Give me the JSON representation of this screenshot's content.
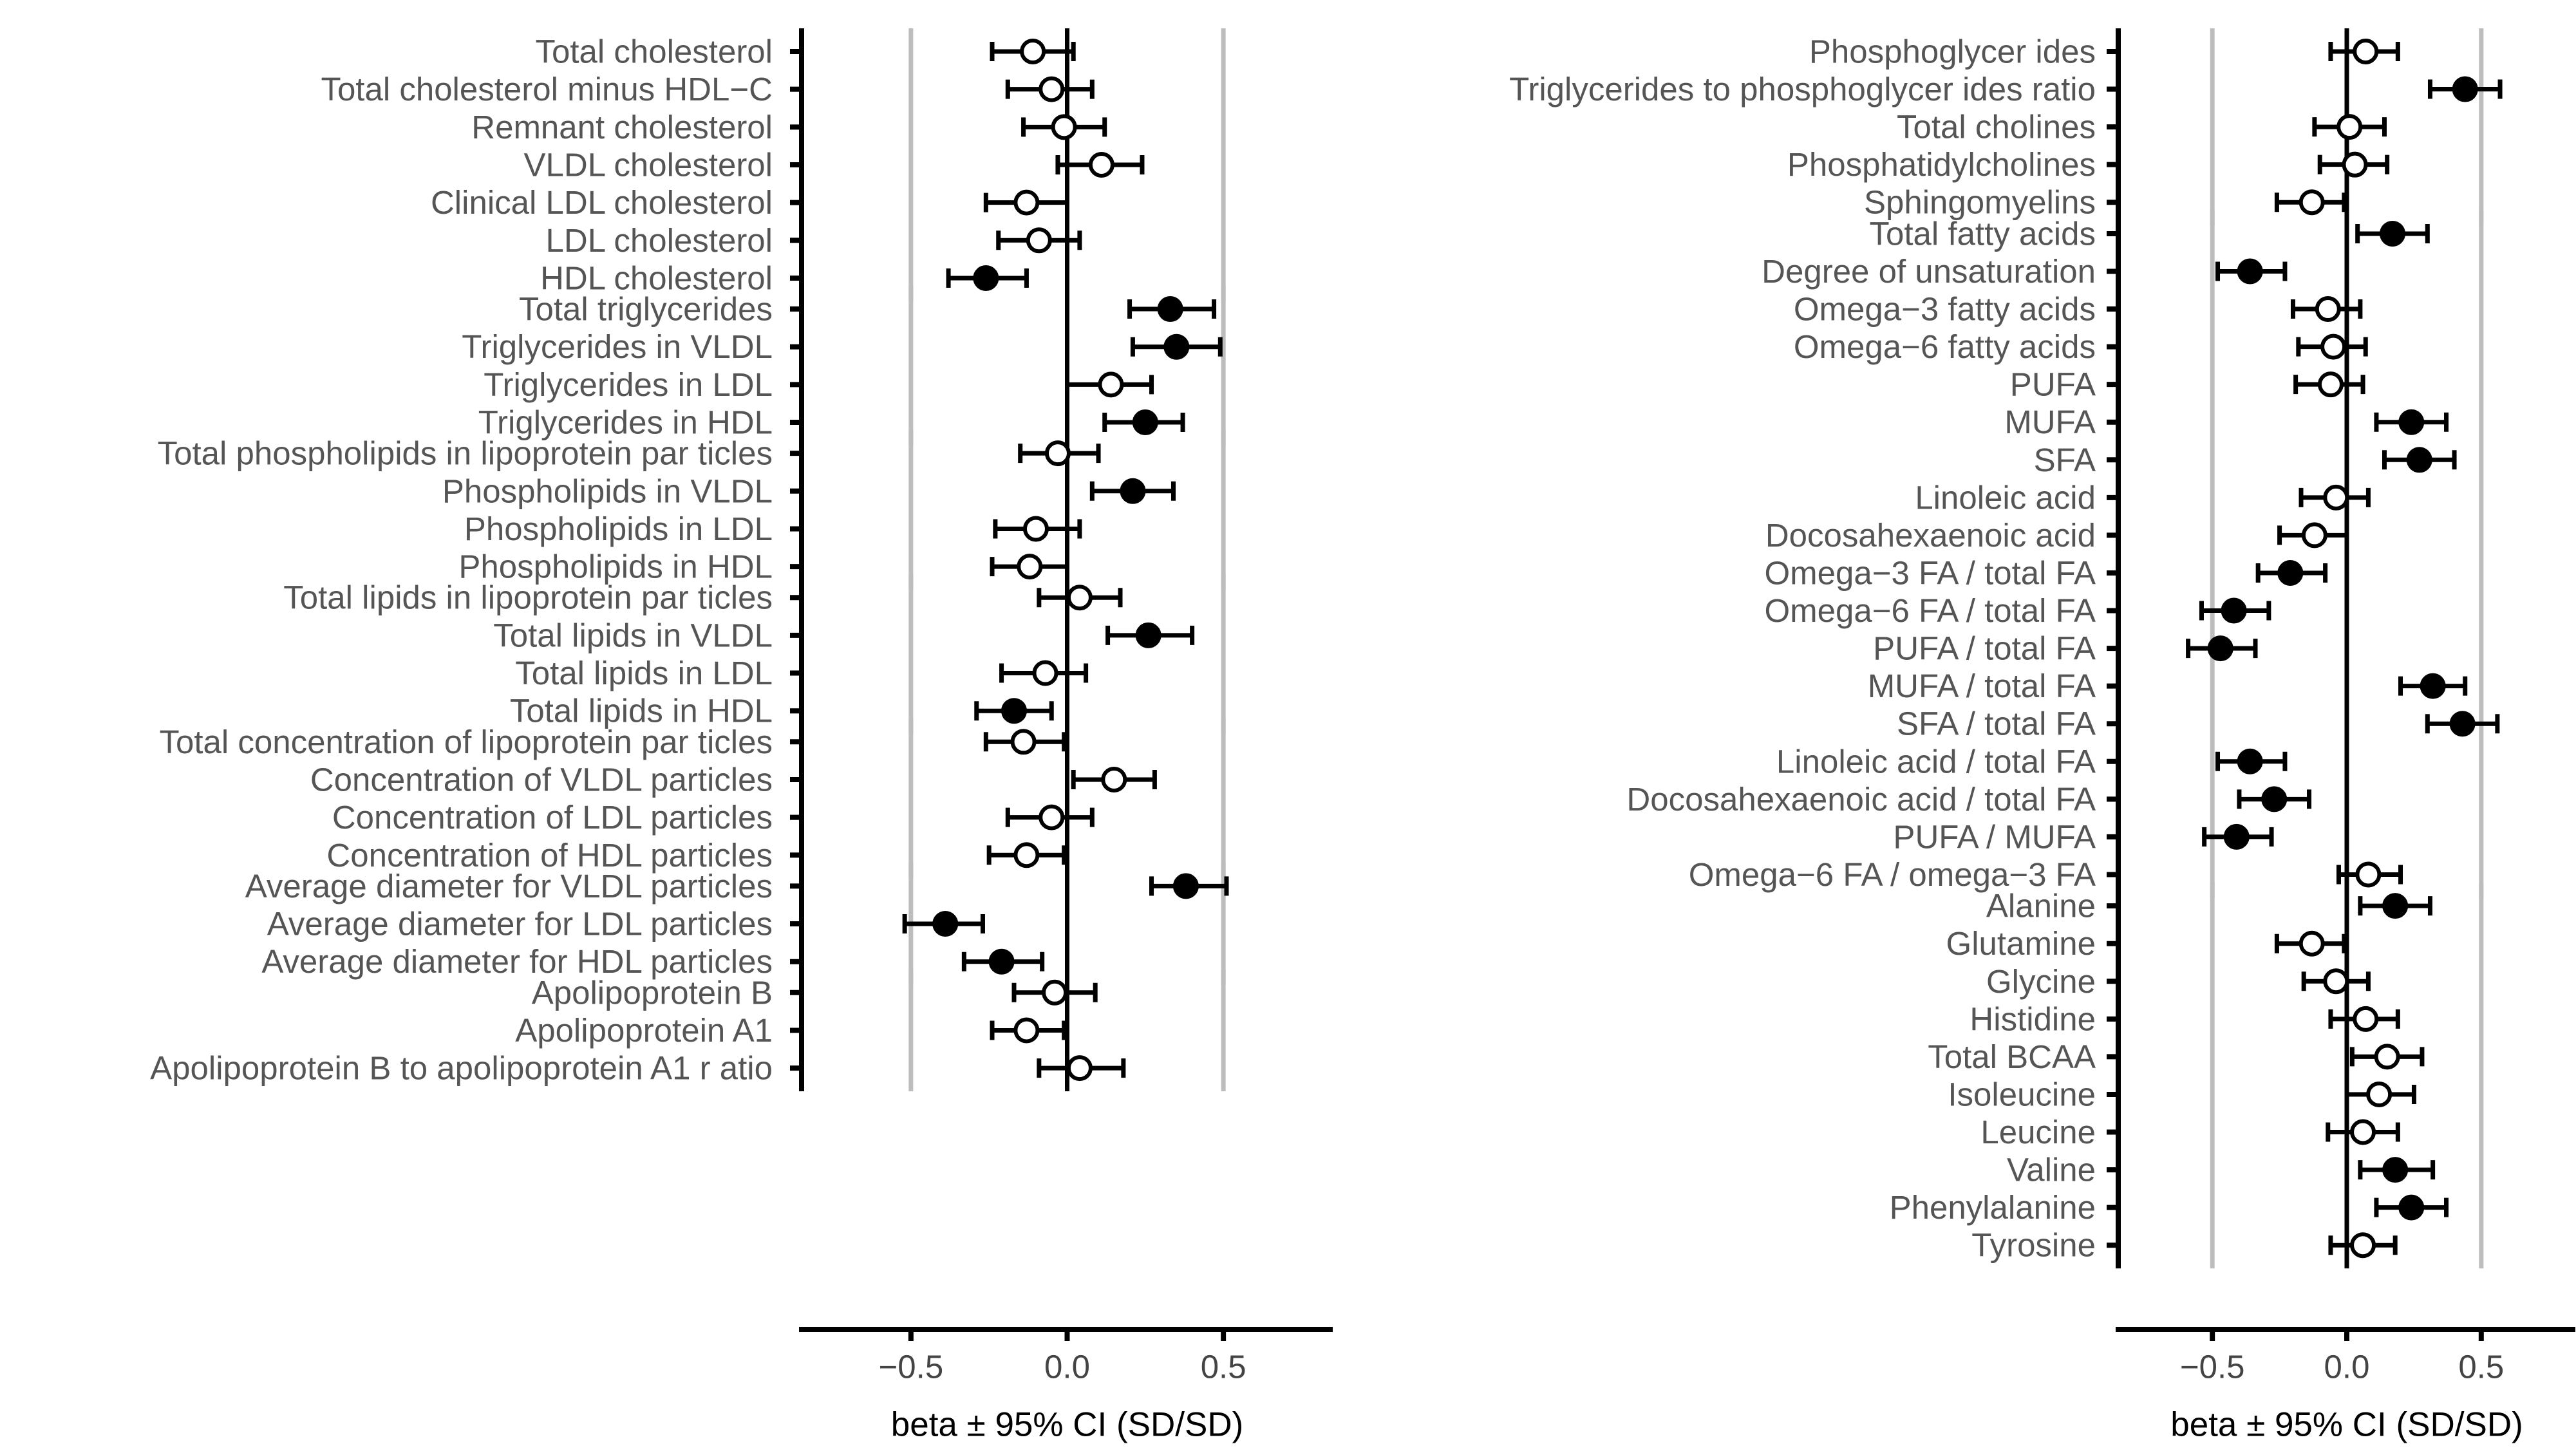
{
  "chart_data": [
    {
      "type": "forest",
      "xlabel": "beta ± 95% CI (SD/SD)",
      "xlim": [
        -0.85,
        0.85
      ],
      "xticks": [
        -0.5,
        0.0,
        0.5
      ],
      "xtick_labels": [
        "−0.5",
        "0.0",
        "0.5"
      ],
      "gridlines": [
        -0.5,
        0.5
      ],
      "groups": [
        {
          "rows": [
            {
              "label": "Total cholesterol",
              "beta": -0.11,
              "lo": -0.24,
              "hi": 0.02,
              "sig": false
            },
            {
              "label": "Total cholesterol minus HDL−C",
              "beta": -0.05,
              "lo": -0.19,
              "hi": 0.08,
              "sig": false
            },
            {
              "label": "Remnant cholesterol",
              "beta": -0.01,
              "lo": -0.14,
              "hi": 0.12,
              "sig": false
            },
            {
              "label": "VLDL cholesterol",
              "beta": 0.11,
              "lo": -0.03,
              "hi": 0.24,
              "sig": false
            },
            {
              "label": "Clinical LDL cholesterol",
              "beta": -0.13,
              "lo": -0.26,
              "hi": 0.0,
              "sig": false
            },
            {
              "label": "LDL cholesterol",
              "beta": -0.09,
              "lo": -0.22,
              "hi": 0.04,
              "sig": false
            },
            {
              "label": "HDL cholesterol",
              "beta": -0.26,
              "lo": -0.38,
              "hi": -0.13,
              "sig": true
            }
          ]
        },
        {
          "rows": [
            {
              "label": "Total triglycerides",
              "beta": 0.33,
              "lo": 0.2,
              "hi": 0.47,
              "sig": true
            },
            {
              "label": "Triglycerides in VLDL",
              "beta": 0.35,
              "lo": 0.21,
              "hi": 0.49,
              "sig": true
            },
            {
              "label": "Triglycerides in LDL",
              "beta": 0.14,
              "lo": 0.0,
              "hi": 0.27,
              "sig": false
            },
            {
              "label": "Triglycerides in HDL",
              "beta": 0.25,
              "lo": 0.12,
              "hi": 0.37,
              "sig": true
            }
          ]
        },
        {
          "rows": [
            {
              "label": "Total phospholipids in lipoprotein par ticles",
              "beta": -0.03,
              "lo": -0.15,
              "hi": 0.1,
              "sig": false
            },
            {
              "label": "Phospholipids in VLDL",
              "beta": 0.21,
              "lo": 0.08,
              "hi": 0.34,
              "sig": true
            },
            {
              "label": "Phospholipids in LDL",
              "beta": -0.1,
              "lo": -0.23,
              "hi": 0.04,
              "sig": false
            },
            {
              "label": "Phospholipids in HDL",
              "beta": -0.12,
              "lo": -0.24,
              "hi": 0.0,
              "sig": false
            }
          ]
        },
        {
          "rows": [
            {
              "label": "Total lipids in lipoprotein par ticles",
              "beta": 0.04,
              "lo": -0.09,
              "hi": 0.17,
              "sig": false
            },
            {
              "label": "Total lipids in VLDL",
              "beta": 0.26,
              "lo": 0.13,
              "hi": 0.4,
              "sig": true
            },
            {
              "label": "Total lipids in LDL",
              "beta": -0.07,
              "lo": -0.21,
              "hi": 0.06,
              "sig": false
            },
            {
              "label": "Total lipids in HDL",
              "beta": -0.17,
              "lo": -0.29,
              "hi": -0.05,
              "sig": true
            }
          ]
        },
        {
          "rows": [
            {
              "label": "Total concentration of lipoprotein par ticles",
              "beta": -0.14,
              "lo": -0.26,
              "hi": -0.01,
              "sig": false
            },
            {
              "label": "Concentration of VLDL particles",
              "beta": 0.15,
              "lo": 0.02,
              "hi": 0.28,
              "sig": false
            },
            {
              "label": "Concentration of LDL particles",
              "beta": -0.05,
              "lo": -0.19,
              "hi": 0.08,
              "sig": false
            },
            {
              "label": "Concentration of HDL particles",
              "beta": -0.13,
              "lo": -0.25,
              "hi": -0.01,
              "sig": false
            }
          ]
        },
        {
          "rows": [
            {
              "label": "Average diameter for VLDL particles",
              "beta": 0.38,
              "lo": 0.27,
              "hi": 0.51,
              "sig": true
            },
            {
              "label": "Average diameter for LDL particles",
              "beta": -0.39,
              "lo": -0.52,
              "hi": -0.27,
              "sig": true
            },
            {
              "label": "Average diameter for HDL particles",
              "beta": -0.21,
              "lo": -0.33,
              "hi": -0.08,
              "sig": true
            }
          ]
        },
        {
          "rows": [
            {
              "label": "Apolipoprotein B",
              "beta": -0.04,
              "lo": -0.17,
              "hi": 0.09,
              "sig": false
            },
            {
              "label": "Apolipoprotein A1",
              "beta": -0.13,
              "lo": -0.24,
              "hi": -0.01,
              "sig": false
            },
            {
              "label": "Apolipoprotein B to apolipoprotein A1 r atio",
              "beta": 0.04,
              "lo": -0.09,
              "hi": 0.18,
              "sig": false
            }
          ]
        }
      ]
    },
    {
      "type": "forest",
      "xlabel": "beta ± 95% CI (SD/SD)",
      "xlim": [
        -0.85,
        0.85
      ],
      "xticks": [
        -0.5,
        0.0,
        0.5
      ],
      "xtick_labels": [
        "−0.5",
        "0.0",
        "0.5"
      ],
      "gridlines": [
        -0.5,
        0.5
      ],
      "groups": [
        {
          "rows": [
            {
              "label": "Phosphoglycer ides",
              "beta": 0.07,
              "lo": -0.06,
              "hi": 0.19,
              "sig": false
            },
            {
              "label": "Triglycerides to phosphoglycer ides ratio",
              "beta": 0.44,
              "lo": 0.31,
              "hi": 0.57,
              "sig": true
            },
            {
              "label": "Total cholines",
              "beta": 0.01,
              "lo": -0.12,
              "hi": 0.14,
              "sig": false
            },
            {
              "label": "Phosphatidylcholines",
              "beta": 0.03,
              "lo": -0.1,
              "hi": 0.15,
              "sig": false
            },
            {
              "label": "Sphingomyelins",
              "beta": -0.13,
              "lo": -0.26,
              "hi": -0.01,
              "sig": false
            }
          ]
        },
        {
          "rows": [
            {
              "label": "Total fatty acids",
              "beta": 0.17,
              "lo": 0.04,
              "hi": 0.3,
              "sig": true
            },
            {
              "label": "Degree of unsaturation",
              "beta": -0.36,
              "lo": -0.48,
              "hi": -0.23,
              "sig": true
            },
            {
              "label": "Omega−3 fatty acids",
              "beta": -0.07,
              "lo": -0.2,
              "hi": 0.05,
              "sig": false
            },
            {
              "label": "Omega−6 fatty acids",
              "beta": -0.05,
              "lo": -0.18,
              "hi": 0.07,
              "sig": false
            },
            {
              "label": "PUFA",
              "beta": -0.06,
              "lo": -0.19,
              "hi": 0.06,
              "sig": false
            },
            {
              "label": "MUFA",
              "beta": 0.24,
              "lo": 0.11,
              "hi": 0.37,
              "sig": true
            },
            {
              "label": "SFA",
              "beta": 0.27,
              "lo": 0.14,
              "hi": 0.4,
              "sig": true
            },
            {
              "label": "Linoleic acid",
              "beta": -0.04,
              "lo": -0.17,
              "hi": 0.08,
              "sig": false
            },
            {
              "label": "Docosahexaenoic acid",
              "beta": -0.12,
              "lo": -0.25,
              "hi": 0.0,
              "sig": false
            },
            {
              "label": "Omega−3 FA / total FA",
              "beta": -0.21,
              "lo": -0.33,
              "hi": -0.08,
              "sig": true
            },
            {
              "label": "Omega−6 FA / total FA",
              "beta": -0.42,
              "lo": -0.54,
              "hi": -0.29,
              "sig": true
            },
            {
              "label": "PUFA / total FA",
              "beta": -0.47,
              "lo": -0.59,
              "hi": -0.34,
              "sig": true
            },
            {
              "label": "MUFA / total FA",
              "beta": 0.32,
              "lo": 0.2,
              "hi": 0.44,
              "sig": true
            },
            {
              "label": "SFA / total FA",
              "beta": 0.43,
              "lo": 0.3,
              "hi": 0.56,
              "sig": true
            },
            {
              "label": "Linoleic acid / total FA",
              "beta": -0.36,
              "lo": -0.48,
              "hi": -0.23,
              "sig": true
            },
            {
              "label": "Docosahexaenoic acid / total FA",
              "beta": -0.27,
              "lo": -0.4,
              "hi": -0.14,
              "sig": true
            },
            {
              "label": "PUFA / MUFA",
              "beta": -0.41,
              "lo": -0.53,
              "hi": -0.28,
              "sig": true
            },
            {
              "label": "Omega−6 FA / omega−3 FA",
              "beta": 0.08,
              "lo": -0.03,
              "hi": 0.2,
              "sig": false
            }
          ]
        },
        {
          "rows": [
            {
              "label": "Alanine",
              "beta": 0.18,
              "lo": 0.05,
              "hi": 0.31,
              "sig": true
            },
            {
              "label": "Glutamine",
              "beta": -0.13,
              "lo": -0.26,
              "hi": -0.01,
              "sig": false
            },
            {
              "label": "Glycine",
              "beta": -0.04,
              "lo": -0.16,
              "hi": 0.08,
              "sig": false
            },
            {
              "label": "Histidine",
              "beta": 0.07,
              "lo": -0.06,
              "hi": 0.19,
              "sig": false
            },
            {
              "label": "Total BCAA",
              "beta": 0.15,
              "lo": 0.02,
              "hi": 0.28,
              "sig": false
            },
            {
              "label": "Isoleucine",
              "beta": 0.12,
              "lo": 0.0,
              "hi": 0.25,
              "sig": false
            },
            {
              "label": "Leucine",
              "beta": 0.06,
              "lo": -0.07,
              "hi": 0.19,
              "sig": false
            },
            {
              "label": "Valine",
              "beta": 0.18,
              "lo": 0.05,
              "hi": 0.32,
              "sig": true
            },
            {
              "label": "Phenylalanine",
              "beta": 0.24,
              "lo": 0.11,
              "hi": 0.37,
              "sig": true
            },
            {
              "label": "Tyrosine",
              "beta": 0.06,
              "lo": -0.06,
              "hi": 0.18,
              "sig": false
            }
          ]
        }
      ]
    }
  ]
}
